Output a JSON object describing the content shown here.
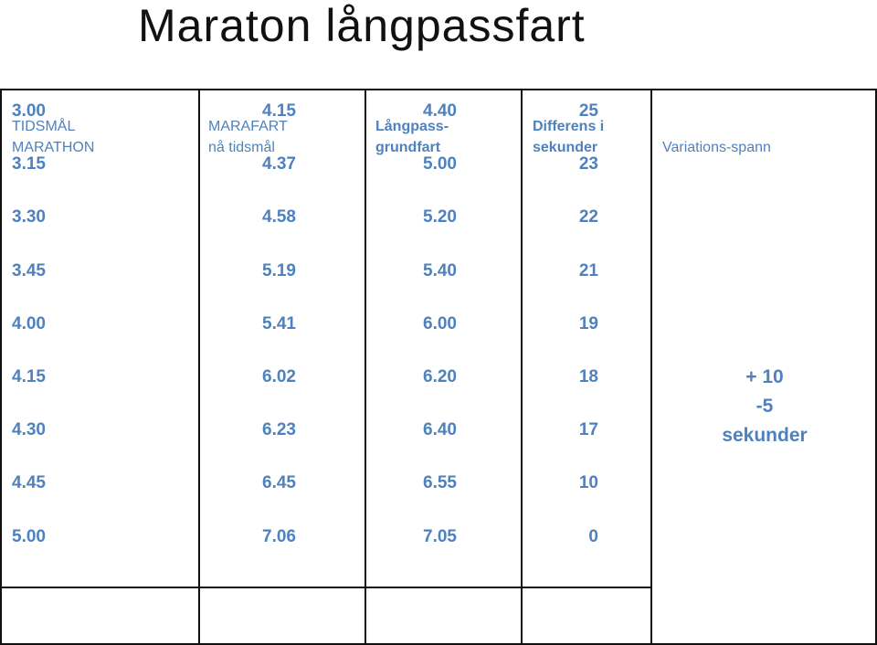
{
  "title": "Maraton långpassfart",
  "headers": {
    "col1": [
      "TIDSMÅL",
      "MARATHON"
    ],
    "col2": [
      "MARAFART",
      "nå tidsmål"
    ],
    "col3": [
      "Långpass-",
      "grundfart"
    ],
    "col4": [
      "Differens i",
      "sekunder"
    ],
    "col5": [
      "Variations-spann"
    ]
  },
  "rows": [
    {
      "goal": "3.00",
      "pace": "4.15",
      "long": "4.40",
      "diff": "25"
    },
    {
      "goal": "3.15",
      "pace": "4.37",
      "long": "5.00",
      "diff": "23"
    },
    {
      "goal": "3.30",
      "pace": "4.58",
      "long": "5.20",
      "diff": "22"
    },
    {
      "goal": "3.45",
      "pace": "5.19",
      "long": "5.40",
      "diff": "21"
    },
    {
      "goal": "4.00",
      "pace": "5.41",
      "long": "6.00",
      "diff": "19"
    },
    {
      "goal": "4.15",
      "pace": "6.02",
      "long": "6.20",
      "diff": "18"
    },
    {
      "goal": "4.30",
      "pace": "6.23",
      "long": "6.40",
      "diff": "17"
    },
    {
      "goal": "4.45",
      "pace": "6.45",
      "long": "6.55",
      "diff": "10"
    },
    {
      "goal": "5.00",
      "pace": "7.06",
      "long": "7.05",
      "diff": "0"
    }
  ],
  "variation": [
    "+ 10",
    "-5",
    "sekunder"
  ]
}
